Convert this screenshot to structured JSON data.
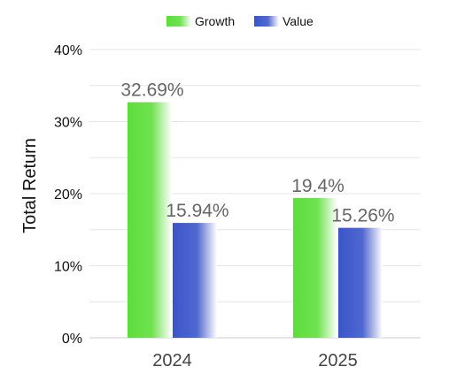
{
  "chart_data": {
    "type": "bar",
    "categories": [
      "2024",
      "2025"
    ],
    "series": [
      {
        "name": "Growth",
        "values": [
          32.69,
          19.4
        ],
        "labels": [
          "32.69%",
          "19.4%"
        ],
        "color": "#5ddd3d"
      },
      {
        "name": "Value",
        "values": [
          15.94,
          15.26
        ],
        "labels": [
          "15.94%",
          "15.26%"
        ],
        "color": "#3b55c9"
      }
    ],
    "ylabel": "Total Return",
    "xlabel": "",
    "ylim": [
      0,
      40
    ],
    "yticks": [
      0,
      10,
      20,
      30,
      40
    ],
    "ytick_labels": [
      "0%",
      "10%",
      "20%",
      "30%",
      "40%"
    ],
    "grid": true,
    "legend_position": "top-center"
  }
}
